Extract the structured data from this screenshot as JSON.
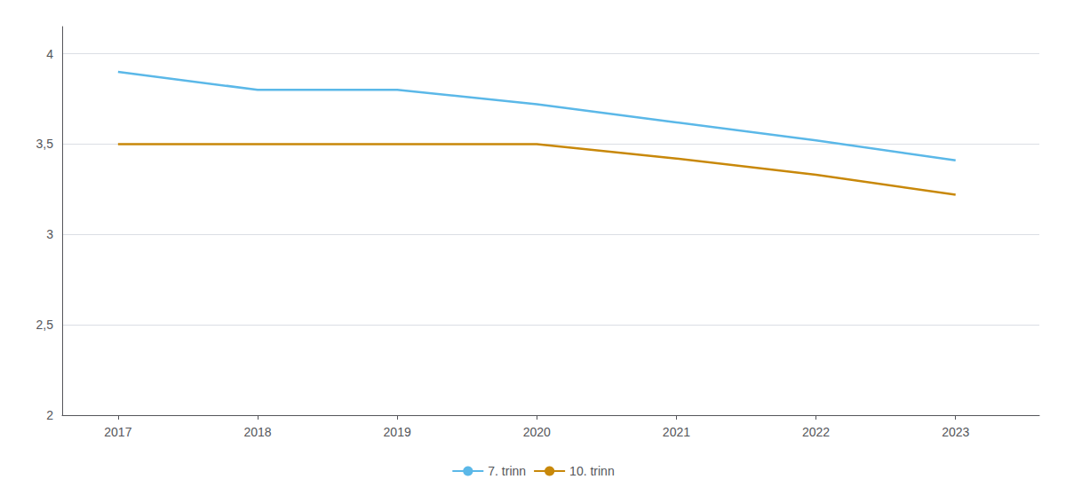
{
  "chart_data": {
    "type": "line",
    "x": [
      2017,
      2018,
      2019,
      2020,
      2021,
      2022,
      2023
    ],
    "series": [
      {
        "name": "7. trinn",
        "color": "#5BB8E8",
        "values": [
          3.9,
          3.8,
          3.8,
          3.72,
          3.62,
          3.52,
          3.41
        ]
      },
      {
        "name": "10. trinn",
        "color": "#C8880A",
        "values": [
          3.5,
          3.5,
          3.5,
          3.5,
          3.42,
          3.33,
          3.22
        ]
      }
    ],
    "xlim": [
      2016.6,
      2023.6
    ],
    "xticks": [
      2017,
      2018,
      2019,
      2020,
      2021,
      2022,
      2023
    ],
    "ylim": [
      2.0,
      4.15
    ],
    "yticks": [
      2,
      {
        "value": 2.5,
        "label": "2,5"
      },
      3,
      {
        "value": 3.5,
        "label": "3,5"
      },
      4
    ],
    "grid": true,
    "legend": "bottom"
  }
}
